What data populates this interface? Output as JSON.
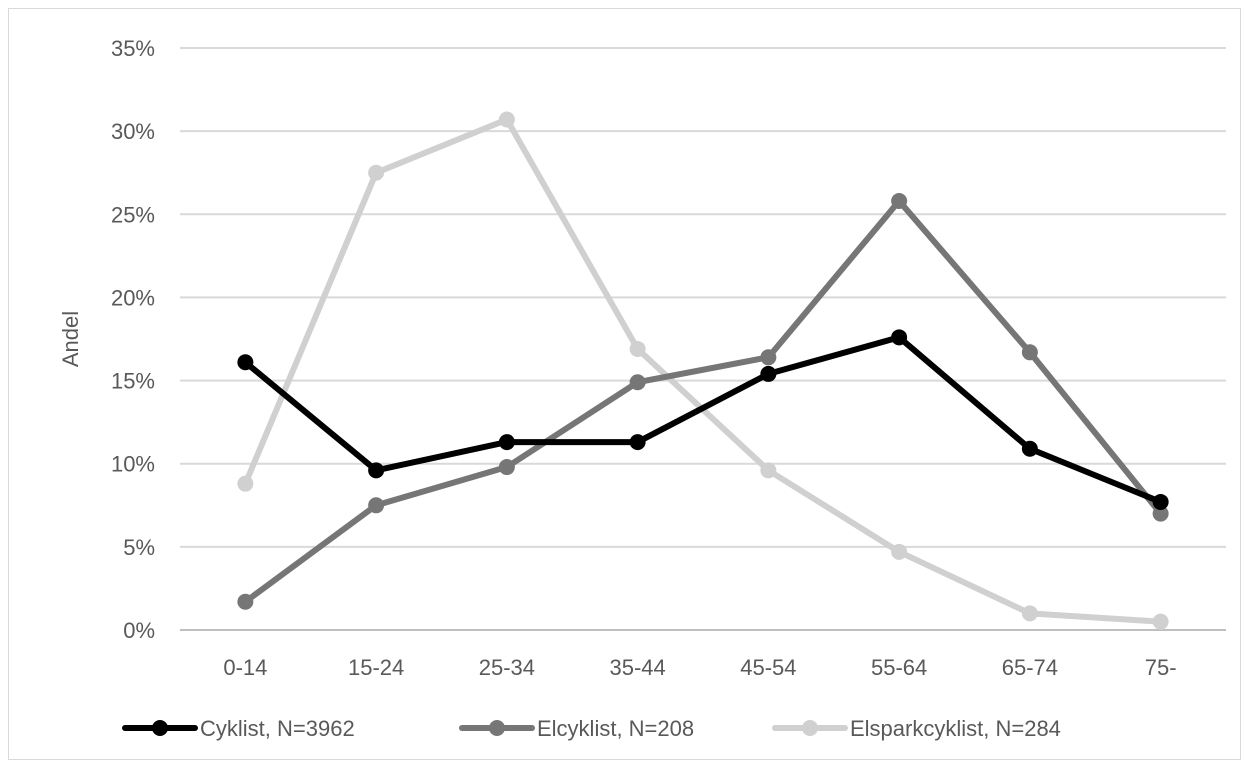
{
  "chart_data": {
    "type": "line",
    "title": "",
    "xlabel": "",
    "ylabel": "Andel",
    "categories": [
      "0-14",
      "15-24",
      "25-34",
      "35-44",
      "45-54",
      "55-64",
      "65-74",
      "75-"
    ],
    "ylim": [
      0,
      35
    ],
    "yticks": [
      "0%",
      "5%",
      "10%",
      "15%",
      "20%",
      "25%",
      "30%",
      "35%"
    ],
    "grid": true,
    "legend_position": "bottom",
    "series": [
      {
        "name": "Cyklist, N=3962",
        "color": "#000000",
        "values": [
          16.1,
          9.6,
          11.3,
          11.3,
          15.4,
          17.6,
          10.9,
          7.7
        ]
      },
      {
        "name": "Elcyklist, N=208",
        "color": "#767676",
        "values": [
          1.7,
          7.5,
          9.8,
          14.9,
          16.4,
          25.8,
          16.7,
          7.0
        ]
      },
      {
        "name": "Elsparkcyklist, N=284",
        "color": "#d0d0d0",
        "values": [
          8.8,
          27.5,
          30.7,
          16.9,
          9.6,
          4.7,
          1.0,
          0.5
        ]
      }
    ]
  }
}
